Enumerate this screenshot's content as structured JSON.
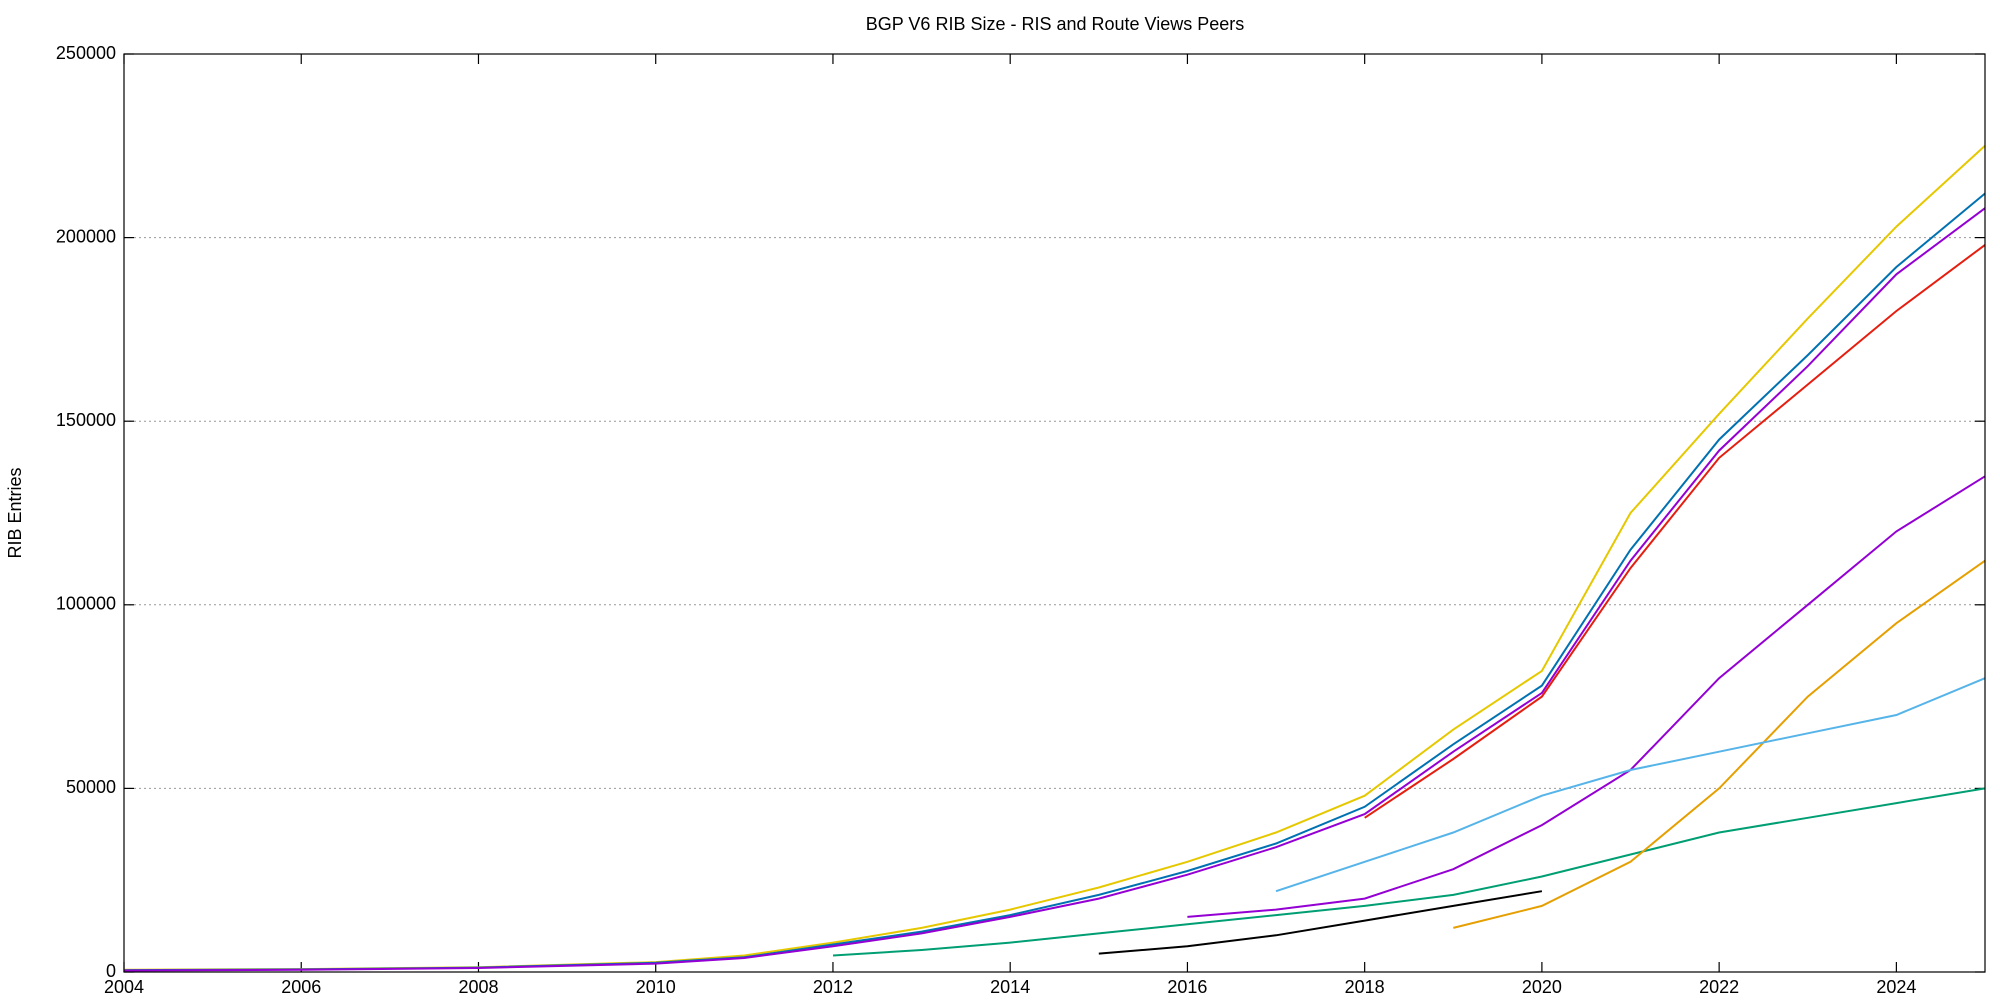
{
  "chart_data": {
    "type": "line",
    "title": "BGP V6 RIB Size - RIS and Route Views Peers",
    "y_label": "RIB Entries",
    "x": [
      2004,
      2006,
      2008,
      2010,
      2011,
      2012,
      2013,
      2014,
      2015,
      2016,
      2017,
      2018,
      2019,
      2020,
      2021,
      2022,
      2023,
      2024,
      2025
    ],
    "xlim": [
      2004,
      2025
    ],
    "xticks": [
      2004,
      2006,
      2008,
      2010,
      2012,
      2014,
      2016,
      2018,
      2020,
      2022,
      2024
    ],
    "ylim": [
      0,
      250000
    ],
    "yticks": [
      0,
      50000,
      100000,
      150000,
      200000,
      250000
    ],
    "grid": true,
    "series": [
      {
        "color": "#e6c800",
        "values": [
          600,
          800,
          1300,
          2700,
          4500,
          8000,
          12000,
          17000,
          23000,
          30000,
          38000,
          48000,
          66000,
          82000,
          125000,
          152000,
          178000,
          203000,
          225000
        ]
      },
      {
        "color": "#0072b2",
        "values": [
          500,
          700,
          1200,
          2500,
          4000,
          7500,
          11000,
          15500,
          21000,
          27500,
          35000,
          45000,
          62000,
          78000,
          115000,
          145000,
          168000,
          192000,
          212000
        ]
      },
      {
        "color": "#9400d3",
        "values": [
          400,
          600,
          1100,
          2300,
          3800,
          7000,
          10500,
          15000,
          20000,
          26500,
          34000,
          43000,
          60000,
          76000,
          112000,
          142000,
          165000,
          190000,
          208000
        ]
      },
      {
        "color": "#e51e10",
        "values": [
          null,
          null,
          null,
          null,
          null,
          null,
          null,
          null,
          null,
          null,
          null,
          42000,
          58000,
          75000,
          110000,
          140000,
          160000,
          180000,
          198000
        ]
      },
      {
        "color": "#009e73",
        "values": [
          null,
          null,
          null,
          null,
          null,
          4500,
          6000,
          8000,
          10500,
          13000,
          15500,
          18000,
          21000,
          26000,
          32000,
          38000,
          42000,
          46000,
          50000
        ]
      },
      {
        "color": "#9400d3",
        "values": [
          null,
          null,
          null,
          null,
          null,
          null,
          null,
          null,
          null,
          15000,
          17000,
          20000,
          28000,
          40000,
          55000,
          80000,
          100000,
          120000,
          135000
        ]
      },
      {
        "color": "#e69f00",
        "values": [
          null,
          null,
          null,
          null,
          null,
          null,
          null,
          null,
          null,
          null,
          null,
          null,
          12000,
          18000,
          30000,
          50000,
          75000,
          95000,
          112000
        ]
      },
      {
        "color": "#000000",
        "values": [
          null,
          null,
          null,
          null,
          null,
          null,
          null,
          null,
          5000,
          7000,
          10000,
          14000,
          18000,
          22000,
          null,
          null,
          null,
          null,
          null
        ]
      },
      {
        "color": "#56b4e9",
        "values": [
          null,
          null,
          null,
          null,
          null,
          null,
          null,
          null,
          null,
          null,
          22000,
          30000,
          38000,
          48000,
          55000,
          60000,
          65000,
          70000,
          80000
        ]
      }
    ]
  }
}
